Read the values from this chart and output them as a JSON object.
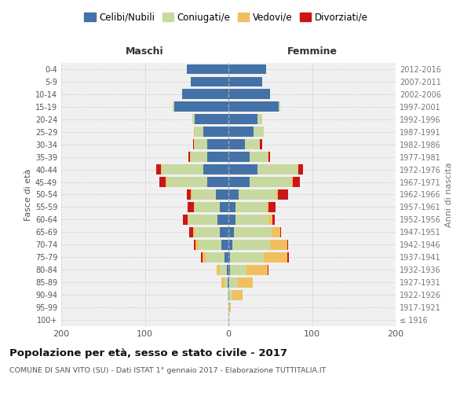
{
  "age_groups": [
    "100+",
    "95-99",
    "90-94",
    "85-89",
    "80-84",
    "75-79",
    "70-74",
    "65-69",
    "60-64",
    "55-59",
    "50-54",
    "45-49",
    "40-44",
    "35-39",
    "30-34",
    "25-29",
    "20-24",
    "15-19",
    "10-14",
    "5-9",
    "0-4"
  ],
  "birth_years": [
    "≤ 1916",
    "1917-1921",
    "1922-1926",
    "1927-1931",
    "1932-1936",
    "1937-1941",
    "1942-1946",
    "1947-1951",
    "1952-1956",
    "1957-1961",
    "1962-1966",
    "1967-1971",
    "1972-1976",
    "1977-1981",
    "1982-1986",
    "1987-1991",
    "1992-1996",
    "1997-2001",
    "2002-2006",
    "2007-2011",
    "2012-2016"
  ],
  "maschi": {
    "celibi": [
      0,
      0,
      0,
      1,
      2,
      5,
      8,
      10,
      13,
      10,
      15,
      25,
      30,
      25,
      25,
      30,
      40,
      65,
      55,
      45,
      50
    ],
    "coniugati": [
      0,
      0,
      1,
      4,
      8,
      22,
      28,
      30,
      35,
      30,
      28,
      48,
      50,
      20,
      15,
      10,
      3,
      2,
      0,
      0,
      0
    ],
    "vedovi": [
      0,
      0,
      0,
      3,
      4,
      4,
      3,
      2,
      1,
      1,
      2,
      2,
      1,
      1,
      1,
      1,
      0,
      0,
      0,
      0,
      0
    ],
    "divorziati": [
      0,
      0,
      0,
      0,
      0,
      2,
      2,
      5,
      5,
      8,
      5,
      8,
      5,
      2,
      1,
      0,
      0,
      0,
      0,
      0,
      0
    ]
  },
  "femmine": {
    "nubili": [
      0,
      0,
      0,
      1,
      2,
      2,
      5,
      7,
      8,
      8,
      12,
      25,
      35,
      25,
      20,
      30,
      35,
      60,
      50,
      40,
      45
    ],
    "coniugate": [
      0,
      1,
      5,
      10,
      20,
      40,
      45,
      45,
      40,
      38,
      45,
      50,
      48,
      22,
      18,
      12,
      5,
      2,
      0,
      0,
      0
    ],
    "vedove": [
      0,
      2,
      12,
      18,
      25,
      28,
      20,
      10,
      5,
      2,
      2,
      2,
      1,
      1,
      0,
      0,
      0,
      0,
      0,
      0,
      0
    ],
    "divorziate": [
      0,
      0,
      0,
      0,
      1,
      2,
      1,
      1,
      2,
      8,
      12,
      8,
      5,
      2,
      2,
      0,
      0,
      0,
      0,
      0,
      0
    ]
  },
  "colors": {
    "celibi": "#4472a8",
    "coniugati": "#c8d9a0",
    "vedovi": "#f0c060",
    "divorziati": "#cc1515"
  },
  "xlim": 200,
  "title": "Popolazione per età, sesso e stato civile - 2017",
  "subtitle": "COMUNE DI SAN VITO (SU) - Dati ISTAT 1° gennaio 2017 - Elaborazione TUTTITALIA.IT",
  "ylabel_left": "Fasce di età",
  "ylabel_right": "Anni di nascita",
  "legend_labels": [
    "Celibi/Nubili",
    "Coniugati/e",
    "Vedovi/e",
    "Divorziati/e"
  ],
  "maschi_label": "Maschi",
  "femmine_label": "Femmine",
  "bg_axes": "#f0f0f0",
  "bg_fig": "#ffffff"
}
